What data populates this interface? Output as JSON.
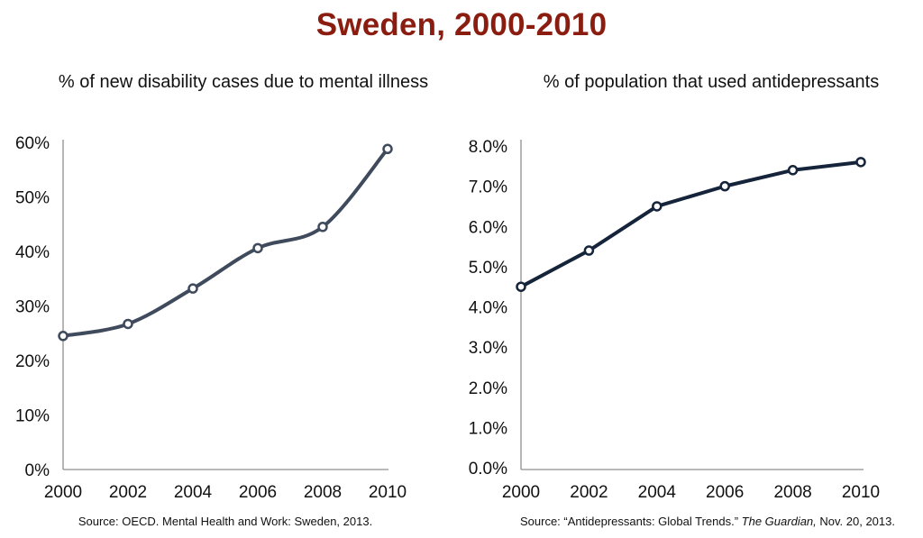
{
  "page_title": "Sweden, 2000-2010",
  "colors": {
    "title": "#8b1c10",
    "left_line": "#3f4a5c",
    "right_line": "#15243a",
    "axis": "#8f8f8f"
  },
  "chart_data": [
    {
      "type": "line",
      "title": "% of new disability cases due to mental illness",
      "xlabel": "",
      "ylabel": "",
      "x": [
        2000,
        2002,
        2004,
        2006,
        2008,
        2010
      ],
      "x_tick_labels": [
        "2000",
        "2002",
        "2004",
        "2006",
        "2008",
        "2010"
      ],
      "series": [
        {
          "values": [
            24.5,
            26.7,
            33.2,
            40.6,
            44.5,
            58.8
          ]
        }
      ],
      "ylim": [
        0,
        60
      ],
      "y_ticks": [
        0,
        10,
        20,
        30,
        40,
        50,
        60
      ],
      "y_tick_labels": [
        "0%",
        "10%",
        "20%",
        "30%",
        "40%",
        "50%",
        "60%"
      ],
      "smooth": true,
      "grid": false,
      "legend": "none",
      "source": "Source: OECD. Mental Health and Work: Sweden, 2013."
    },
    {
      "type": "line",
      "title": "% of population that used antidepressants",
      "xlabel": "",
      "ylabel": "",
      "x": [
        2000,
        2002,
        2004,
        2006,
        2008,
        2010
      ],
      "x_tick_labels": [
        "2000",
        "2002",
        "2004",
        "2006",
        "2008",
        "2010"
      ],
      "series": [
        {
          "values": [
            4.5,
            5.4,
            6.5,
            7.0,
            7.4,
            7.6
          ]
        }
      ],
      "ylim": [
        0,
        8
      ],
      "y_ticks": [
        0,
        1,
        2,
        3,
        4,
        5,
        6,
        7,
        8
      ],
      "y_tick_labels": [
        "0.0%",
        "1.0%",
        "2.0%",
        "3.0%",
        "4.0%",
        "5.0%",
        "6.0%",
        "7.0%",
        "8.0%"
      ],
      "smooth": false,
      "grid": false,
      "legend": "none",
      "source_parts": {
        "prefix": "Source:  “Antidepressants: Global Trends.” ",
        "publication": "The Guardian,",
        "date": "   Nov. 20, 2013."
      }
    }
  ]
}
